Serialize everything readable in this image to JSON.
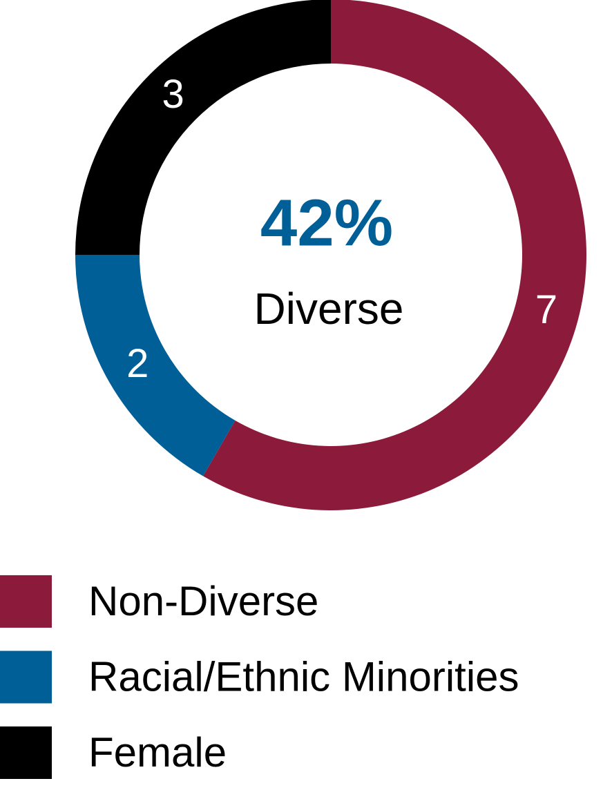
{
  "chart_data": {
    "type": "donut",
    "center_label": "42%",
    "center_sublabel": "Diverse",
    "categories": [
      "Non-Diverse",
      "Racial/Ethnic Minorities",
      "Female"
    ],
    "values": [
      7,
      2,
      3
    ],
    "colors": [
      "#8c1a3a",
      "#005f96",
      "#000000"
    ],
    "center_color": "#005f96",
    "legend": "bottom"
  }
}
